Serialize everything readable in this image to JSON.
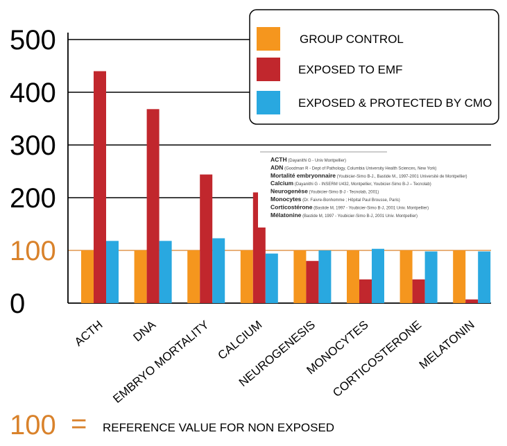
{
  "chart_data": {
    "type": "bar",
    "categories": [
      "ACTH",
      "DNA",
      "EMBRYO MORTALITY",
      "CALCIUM",
      "NEUROGENESIS",
      "MONOCYTES",
      "CORTICOSTERONE",
      "MELATONIN"
    ],
    "series": [
      {
        "name": "GROUP CONTROL",
        "color": "#f5961e",
        "values": [
          100,
          100,
          100,
          100,
          100,
          100,
          100,
          100
        ]
      },
      {
        "name": "EXPOSED TO EMF",
        "color": "#c1272d",
        "values": [
          440,
          368,
          244,
          210,
          80,
          45,
          45,
          7
        ]
      },
      {
        "name": "EXPOSED & PROTECTED BY CMO",
        "color": "#29a8e0",
        "values": [
          118,
          118,
          123,
          94,
          100,
          103,
          98,
          98
        ]
      }
    ],
    "yticks": [
      0,
      100,
      200,
      300,
      400,
      500
    ],
    "ylim": [
      0,
      500
    ],
    "reference_value": 100,
    "reference_color": "#d9822b",
    "legend_position": "top-right",
    "grid": "horizontal"
  },
  "reference_note": {
    "number": "100",
    "equals": "=",
    "text": "REFERENCE VALUE FOR NON EXPOSED"
  },
  "sources": [
    {
      "head": "ACTH",
      "body": "(Dayanithi G - Univ Montpellier)"
    },
    {
      "head": "ADN",
      "body": "(Goodman R - Dept of Pathology, Columbia University Health Sciences, New York)"
    },
    {
      "head": "Mortalité embryonnaire",
      "body": "(Youbicier-Simo B-J., Bastide M., 1997-2001 Université de Montpellier)"
    },
    {
      "head": "Calcium",
      "body": "(Dayanithi G - INSERM U432, Montpellier, Youbicier-Simo B-J – Tecnolab)"
    },
    {
      "head": "Neurogenèse",
      "body": "(Youbicier-Simo B-J - Tecnolab, 2001)"
    },
    {
      "head": "Monocytes",
      "body": "(Dr. Faivre-Bonhomme ; Hôpital Paul Brousse, Paris)"
    },
    {
      "head": "Corticostérone",
      "body": "(Bastide M, 1997 - Youbicier-Simo B-J, 2001 Univ. Montpellier)"
    },
    {
      "head": "Mélatonine",
      "body": "(Bastide M, 1997 - Youbicier-Simo B-J, 2001 Univ. Montpellier)"
    }
  ]
}
